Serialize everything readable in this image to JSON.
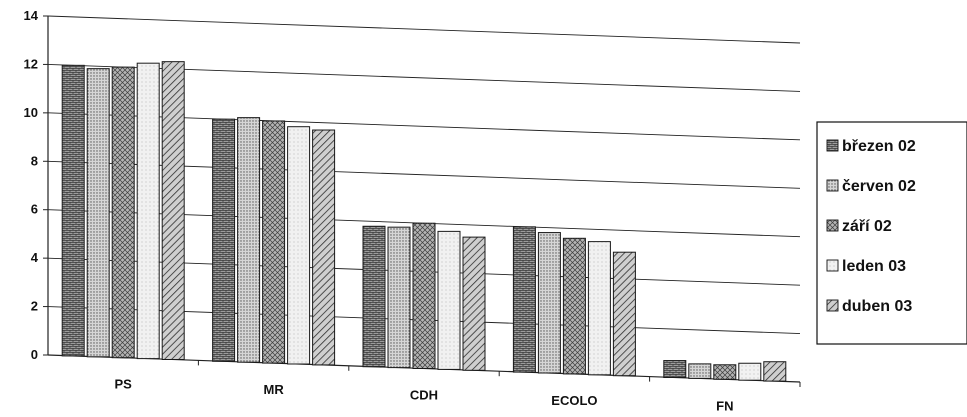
{
  "chart_data": {
    "type": "bar",
    "title": "",
    "xlabel": "",
    "ylabel": "",
    "ylim": [
      0,
      14
    ],
    "yticks": [
      0,
      2,
      4,
      6,
      8,
      10,
      12,
      14
    ],
    "grid": true,
    "legend_position": "right",
    "categories": [
      "PS",
      "MR",
      "CDH",
      "ECOLO",
      "FN"
    ],
    "series": [
      {
        "name": "březen 02",
        "values": [
          12.0,
          10.0,
          5.8,
          6.0,
          0.7
        ],
        "pattern": "brick",
        "color": "#8a8a8a"
      },
      {
        "name": "červen 02",
        "values": [
          11.9,
          10.1,
          5.8,
          5.8,
          0.6
        ],
        "pattern": "dots",
        "color": "#b5b5b5"
      },
      {
        "name": "září 02",
        "values": [
          12.0,
          10.0,
          6.0,
          5.6,
          0.6
        ],
        "pattern": "crosshatch",
        "color": "#9a9a9a"
      },
      {
        "name": "leden 03",
        "values": [
          12.2,
          9.8,
          5.7,
          5.5,
          0.7
        ],
        "pattern": "light",
        "color": "#d8d8d8"
      },
      {
        "name": "duben 03",
        "values": [
          12.3,
          9.7,
          5.5,
          5.1,
          0.8
        ],
        "pattern": "diagonal",
        "color": "#8f8f8f"
      }
    ]
  }
}
